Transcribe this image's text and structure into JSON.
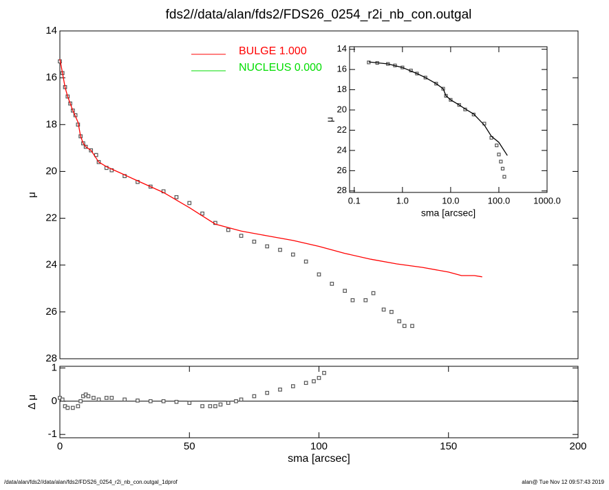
{
  "chart_data": [
    {
      "type": "scatter",
      "title": "fds2//data/alan/fds2/FDS26_0254_r2i_nb_con.outgal",
      "ylabel": "μ",
      "xlim": [
        0,
        200
      ],
      "ylim": [
        28,
        14
      ],
      "yticks": [
        14,
        16,
        18,
        20,
        22,
        24,
        26,
        28
      ],
      "legend": [
        {
          "label": "BULGE  1.000",
          "color": "#ff0000"
        },
        {
          "label": "NUCLEUS  0.000",
          "color": "#00dd00"
        }
      ],
      "series": [
        {
          "style": "markers",
          "color": "#555555",
          "x": [
            0,
            1,
            2,
            3,
            4,
            5,
            6,
            7,
            8,
            9,
            10,
            12,
            14,
            15,
            18,
            20,
            25,
            30,
            35,
            40,
            45,
            50,
            55,
            60,
            65,
            70,
            75,
            80,
            85,
            90,
            95,
            100,
            105,
            110,
            113,
            118,
            121,
            125,
            128,
            131,
            133,
            136
          ],
          "values": [
            15.3,
            15.8,
            16.4,
            16.8,
            17.1,
            17.4,
            17.6,
            18.0,
            18.5,
            18.8,
            18.95,
            19.1,
            19.3,
            19.6,
            19.85,
            19.95,
            20.2,
            20.45,
            20.65,
            20.85,
            21.1,
            21.35,
            21.8,
            22.2,
            22.5,
            22.75,
            23.0,
            23.2,
            23.35,
            23.55,
            23.85,
            24.4,
            24.8,
            25.1,
            25.5,
            25.5,
            25.2,
            25.9,
            26.0,
            26.4,
            26.6,
            26.6
          ]
        },
        {
          "style": "line",
          "color": "#ff0000",
          "x": [
            0,
            1,
            2,
            3,
            5,
            7,
            8,
            9,
            10,
            12,
            15,
            18,
            20,
            25,
            30,
            40,
            50,
            55,
            60,
            70,
            80,
            90,
            100,
            110,
            120,
            130,
            140,
            150,
            155,
            160,
            163
          ],
          "values": [
            15.2,
            15.8,
            16.4,
            16.8,
            17.4,
            17.9,
            18.5,
            18.8,
            18.95,
            19.1,
            19.6,
            19.8,
            19.9,
            20.15,
            20.4,
            20.9,
            21.55,
            21.9,
            22.25,
            22.55,
            22.75,
            22.95,
            23.2,
            23.5,
            23.75,
            23.95,
            24.1,
            24.3,
            24.45,
            24.45,
            24.5
          ]
        }
      ]
    },
    {
      "type": "scatter",
      "ylabel": "Δ μ",
      "xlabel": "sma [arcsec]",
      "xlim": [
        0,
        200
      ],
      "xticks": [
        0,
        50,
        100,
        150,
        200
      ],
      "ylim": [
        -1.1,
        1.05
      ],
      "yticks": [
        -1,
        0,
        1
      ],
      "reference_line": 0,
      "series": [
        {
          "style": "markers",
          "color": "#555555",
          "x": [
            0,
            1,
            2,
            3,
            5,
            7,
            8,
            9,
            10,
            11,
            13,
            15,
            18,
            20,
            25,
            30,
            35,
            40,
            45,
            50,
            55,
            58,
            60,
            62,
            65,
            68,
            70,
            75,
            80,
            85,
            90,
            95,
            98,
            100,
            102
          ],
          "values": [
            0.1,
            0.05,
            -0.15,
            -0.2,
            -0.2,
            -0.15,
            0,
            0.15,
            0.2,
            0.15,
            0.1,
            0.05,
            0.1,
            0.1,
            0.05,
            0.02,
            0,
            0,
            -0.02,
            -0.05,
            -0.15,
            -0.15,
            -0.15,
            -0.1,
            -0.05,
            0,
            0.05,
            0.15,
            0.25,
            0.35,
            0.45,
            0.55,
            0.6,
            0.7,
            0.85
          ]
        }
      ]
    },
    {
      "type": "scatter",
      "ylabel": "μ",
      "xlabel": "sma [arcsec]",
      "xscale": "log",
      "xlim": [
        0.08,
        1000
      ],
      "xticks": [
        0.1,
        {
          "value": 1,
          "label": "1.0"
        },
        {
          "value": 10,
          "label": "10.0"
        },
        {
          "value": 100,
          "label": "100.0"
        },
        {
          "value": 1000,
          "label": "1000.0"
        }
      ],
      "ylim": [
        28.15,
        13.75
      ],
      "yticks": [
        14,
        16,
        18,
        20,
        22,
        24,
        26,
        28
      ],
      "series": [
        {
          "style": "markers",
          "color": "#555555",
          "x": [
            0.2,
            0.3,
            0.5,
            0.7,
            1,
            1.5,
            2,
            3,
            5,
            7,
            8,
            10,
            15,
            20,
            30,
            50,
            70,
            90,
            100,
            110,
            120,
            130
          ],
          "values": [
            15.3,
            15.35,
            15.45,
            15.6,
            15.8,
            16.1,
            16.4,
            16.8,
            17.4,
            17.9,
            18.6,
            19.0,
            19.5,
            19.95,
            20.45,
            21.35,
            22.75,
            23.5,
            24.4,
            25.1,
            25.8,
            26.6
          ]
        },
        {
          "style": "line",
          "color": "#000000",
          "x": [
            0.2,
            0.5,
            1,
            2,
            3,
            5,
            7,
            8,
            10,
            15,
            20,
            30,
            50,
            70,
            100,
            150
          ],
          "values": [
            15.25,
            15.45,
            15.8,
            16.4,
            16.8,
            17.4,
            17.9,
            18.6,
            19.0,
            19.5,
            19.9,
            20.4,
            21.5,
            22.6,
            23.2,
            24.5
          ]
        }
      ]
    }
  ],
  "footer": {
    "left": "/data/alan/fds2//data/alan/fds2/FDS26_0254_r2i_nb_con.outgal_1dprof",
    "right": "alan@  Tue Nov 12 09:57:43 2019"
  }
}
